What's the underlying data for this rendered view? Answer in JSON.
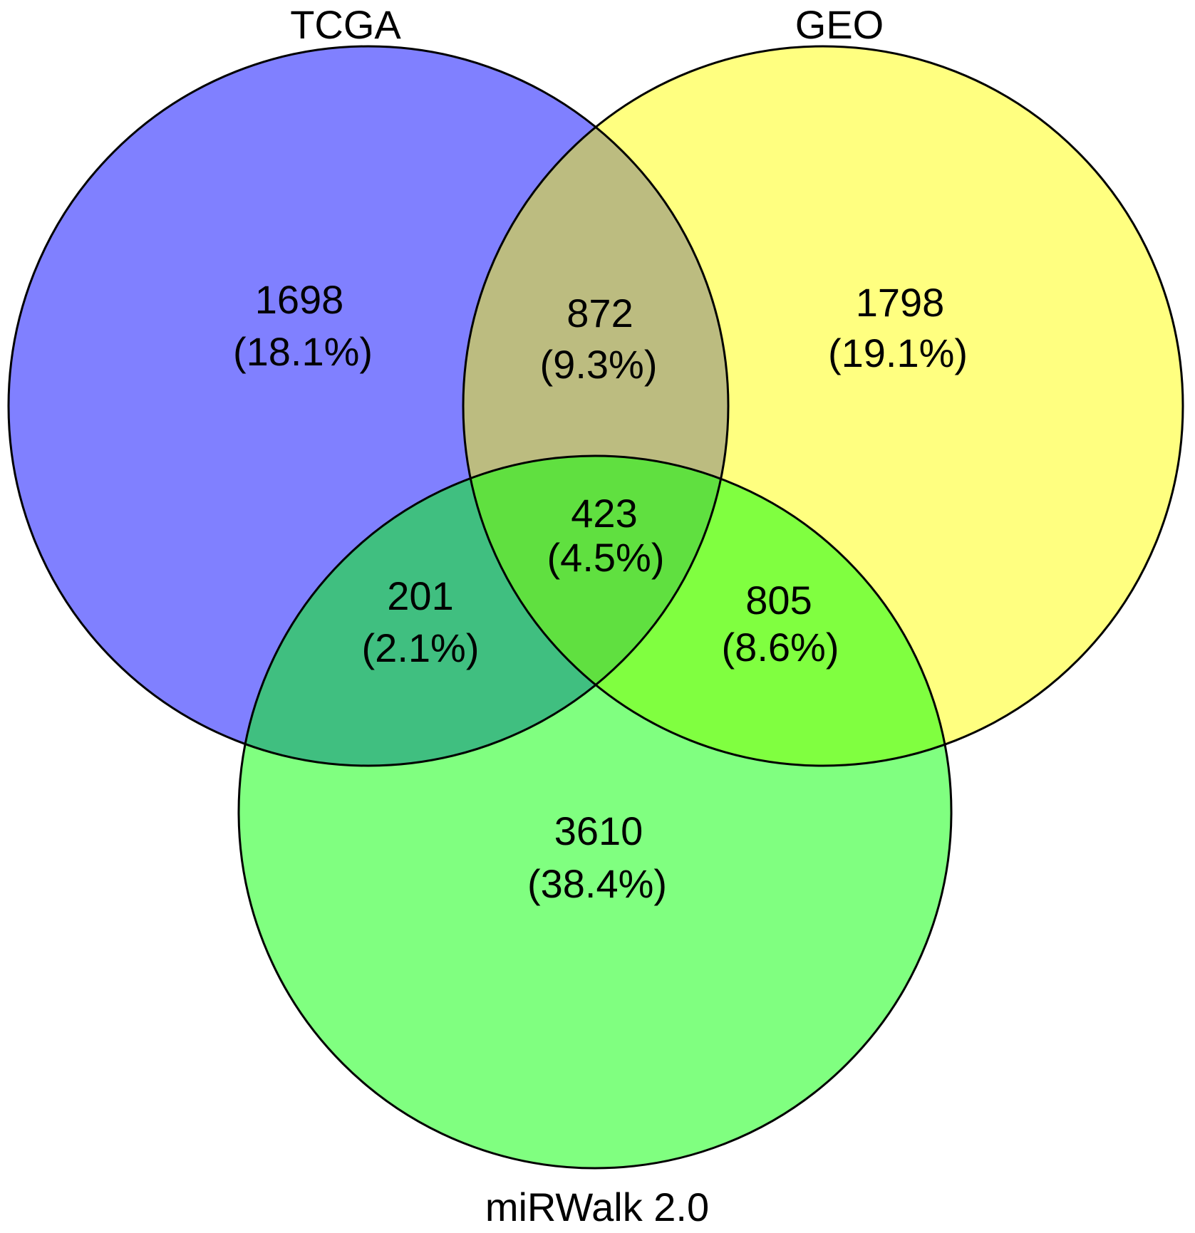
{
  "sets": [
    {
      "id": "tcga",
      "label": "TCGA",
      "color": "#8080ff"
    },
    {
      "id": "geo",
      "label": "GEO",
      "color": "#ffff80"
    },
    {
      "id": "mirwalk",
      "label": "miRWalk 2.0",
      "color": "#80ff80"
    }
  ],
  "regions": {
    "tcga_only": {
      "count": "1698",
      "percent": "(18.1%)"
    },
    "tcga_geo": {
      "count": "872",
      "percent": "(9.3%)"
    },
    "geo_only": {
      "count": "1798",
      "percent": "(19.1%)"
    },
    "all_three": {
      "count": "423",
      "percent": "(4.5%)"
    },
    "tcga_mirwalk": {
      "count": "201",
      "percent": "(2.1%)"
    },
    "geo_mirwalk": {
      "count": "805",
      "percent": "(8.6%)"
    },
    "mirwalk_only": {
      "count": "3610",
      "percent": "(38.4%)"
    }
  },
  "overlap_colors": {
    "tcga_geo": "#bcbc80",
    "tcga_mirwalk": "#40bf80",
    "geo_mirwalk": "#80ff40",
    "all_three": "#60e040"
  }
}
